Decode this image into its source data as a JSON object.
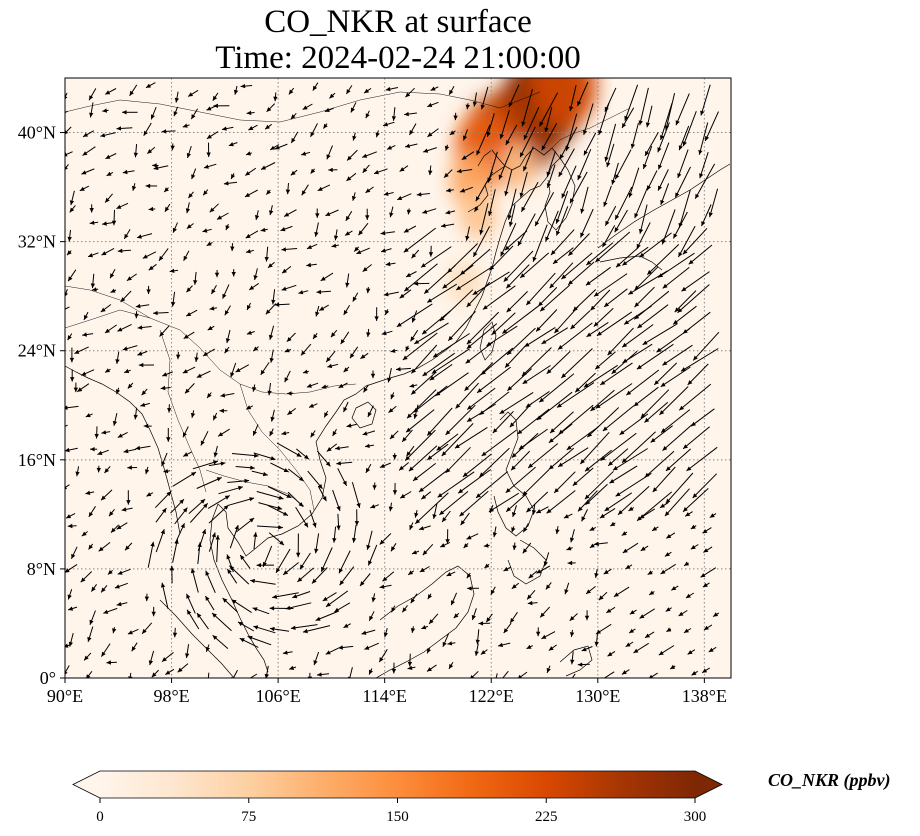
{
  "title": "CO_NKR at surface",
  "subtitle": "Time: 2024-02-24 21:00:00",
  "map": {
    "lon_range": [
      90,
      140
    ],
    "lat_range": [
      0,
      44
    ],
    "lon_ticks": [
      {
        "value": 90,
        "label": "90°E"
      },
      {
        "value": 98,
        "label": "98°E"
      },
      {
        "value": 106,
        "label": "106°E"
      },
      {
        "value": 114,
        "label": "114°E"
      },
      {
        "value": 122,
        "label": "122°E"
      },
      {
        "value": 130,
        "label": "130°E"
      },
      {
        "value": 138,
        "label": "138°E"
      }
    ],
    "lat_ticks": [
      {
        "value": 0,
        "label": "0°"
      },
      {
        "value": 8,
        "label": "8°N"
      },
      {
        "value": 16,
        "label": "16°N"
      },
      {
        "value": 24,
        "label": "24°N"
      },
      {
        "value": 32,
        "label": "32°N"
      },
      {
        "value": 40,
        "label": "40°N"
      }
    ],
    "gridlines": true,
    "background_color": "#fff5eb",
    "plumes": [
      {
        "lon": 126,
        "lat": 42.5,
        "value": 300
      },
      {
        "lon": 124.5,
        "lat": 40.5,
        "value": 280
      },
      {
        "lon": 122.5,
        "lat": 39.5,
        "value": 250
      },
      {
        "lon": 121.5,
        "lat": 38.8,
        "value": 200
      },
      {
        "lon": 127.5,
        "lat": 43.5,
        "value": 230
      },
      {
        "lon": 120.5,
        "lat": 36.5,
        "value": 120
      },
      {
        "lon": 121,
        "lat": 34,
        "value": 90
      },
      {
        "lon": 120,
        "lat": 29,
        "value": 60
      },
      {
        "lon": 124,
        "lat": 37.5,
        "value": 90
      }
    ]
  },
  "colorbar": {
    "label": "CO_NKR (ppbv)",
    "min": 0,
    "max": 300,
    "ticks": [
      0,
      75,
      150,
      225,
      300
    ],
    "colormap": [
      "#fff5eb",
      "#fee6ce",
      "#fdd0a2",
      "#fdae6b",
      "#fd8d3c",
      "#f16913",
      "#d94801",
      "#a63603",
      "#7f2704"
    ],
    "extend": "both"
  }
}
